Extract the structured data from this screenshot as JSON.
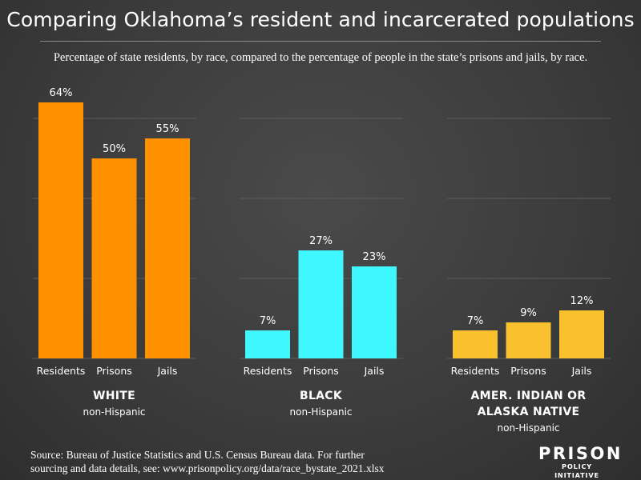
{
  "title": "Comparing Oklahoma’s resident and incarcerated populations",
  "subtitle": "Percentage of state residents, by race, compared to the percentage of people in the state’s prisons and jails, by race.",
  "source": {
    "line1": "Source: Bureau of Justice Statistics and U.S. Census Bureau data. For further",
    "line2": "sourcing and data details, see: www.prisonpolicy.org/data/race_bystate_2021.xlsx"
  },
  "logo": {
    "top": "PRISON",
    "bottom": "POLICY INITIATIVE"
  },
  "colors": {
    "white_group": "#ff9100",
    "black_group": "#3ff7ff",
    "native_group": "#f9c12e",
    "gridline": "#5c5c5c",
    "background": "#3c3c3c"
  },
  "chart_data": {
    "type": "bar",
    "ylim": [
      0,
      70
    ],
    "grid": true,
    "unit": "%",
    "categories": [
      "Residents",
      "Prisons",
      "Jails"
    ],
    "groups": [
      {
        "label_lines": [
          "WHITE"
        ],
        "sublabel": "non-Hispanic",
        "color": "#ff9100",
        "values": [
          64,
          50,
          55
        ]
      },
      {
        "label_lines": [
          "BLACK"
        ],
        "sublabel": "non-Hispanic",
        "color": "#3ff7ff",
        "values": [
          7,
          27,
          23
        ]
      },
      {
        "label_lines": [
          "AMER. INDIAN OR",
          "ALASKA NATIVE"
        ],
        "sublabel": "non-Hispanic",
        "color": "#f9c12e",
        "values": [
          7,
          9,
          12
        ]
      }
    ]
  }
}
